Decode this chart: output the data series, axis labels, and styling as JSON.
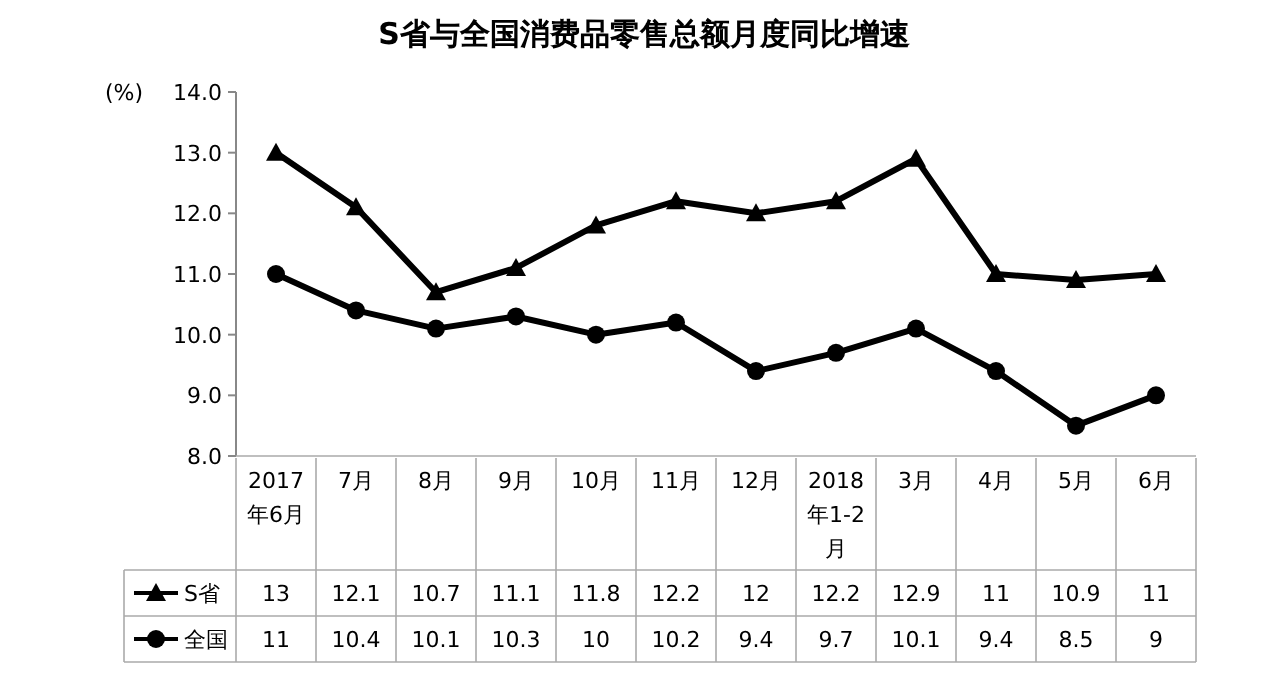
{
  "chart_data": {
    "type": "line",
    "title": "S省与全国消费品零售总额月度同比增速",
    "ylabel": "(%)",
    "categories": [
      "2017年6月",
      "7月",
      "8月",
      "9月",
      "10月",
      "11月",
      "12月",
      "2018年1-2月",
      "3月",
      "4月",
      "5月",
      "6月"
    ],
    "series": [
      {
        "name": "S省",
        "color": "#000000",
        "marker": "triangle",
        "values": [
          13,
          12.1,
          10.7,
          11.1,
          11.8,
          12.2,
          12,
          12.2,
          12.9,
          11,
          10.9,
          11
        ]
      },
      {
        "name": "全国",
        "color": "#000000",
        "marker": "circle",
        "values": [
          11,
          10.4,
          10.1,
          10.3,
          10,
          10.2,
          9.4,
          9.7,
          10.1,
          9.4,
          8.5,
          9
        ]
      }
    ],
    "ylim": [
      8,
      14
    ],
    "yticks": [
      {
        "value": 8,
        "label": "8.0"
      },
      {
        "value": 9,
        "label": "9.0"
      },
      {
        "value": 10,
        "label": "10.0"
      },
      {
        "value": 11,
        "label": "11.0"
      },
      {
        "value": 12,
        "label": "12.0"
      },
      {
        "value": 13,
        "label": "13.0"
      },
      {
        "value": 14,
        "label": "14.0"
      }
    ],
    "data_labels": true,
    "legend": "bottom",
    "grid": false,
    "line_style": "solid"
  }
}
